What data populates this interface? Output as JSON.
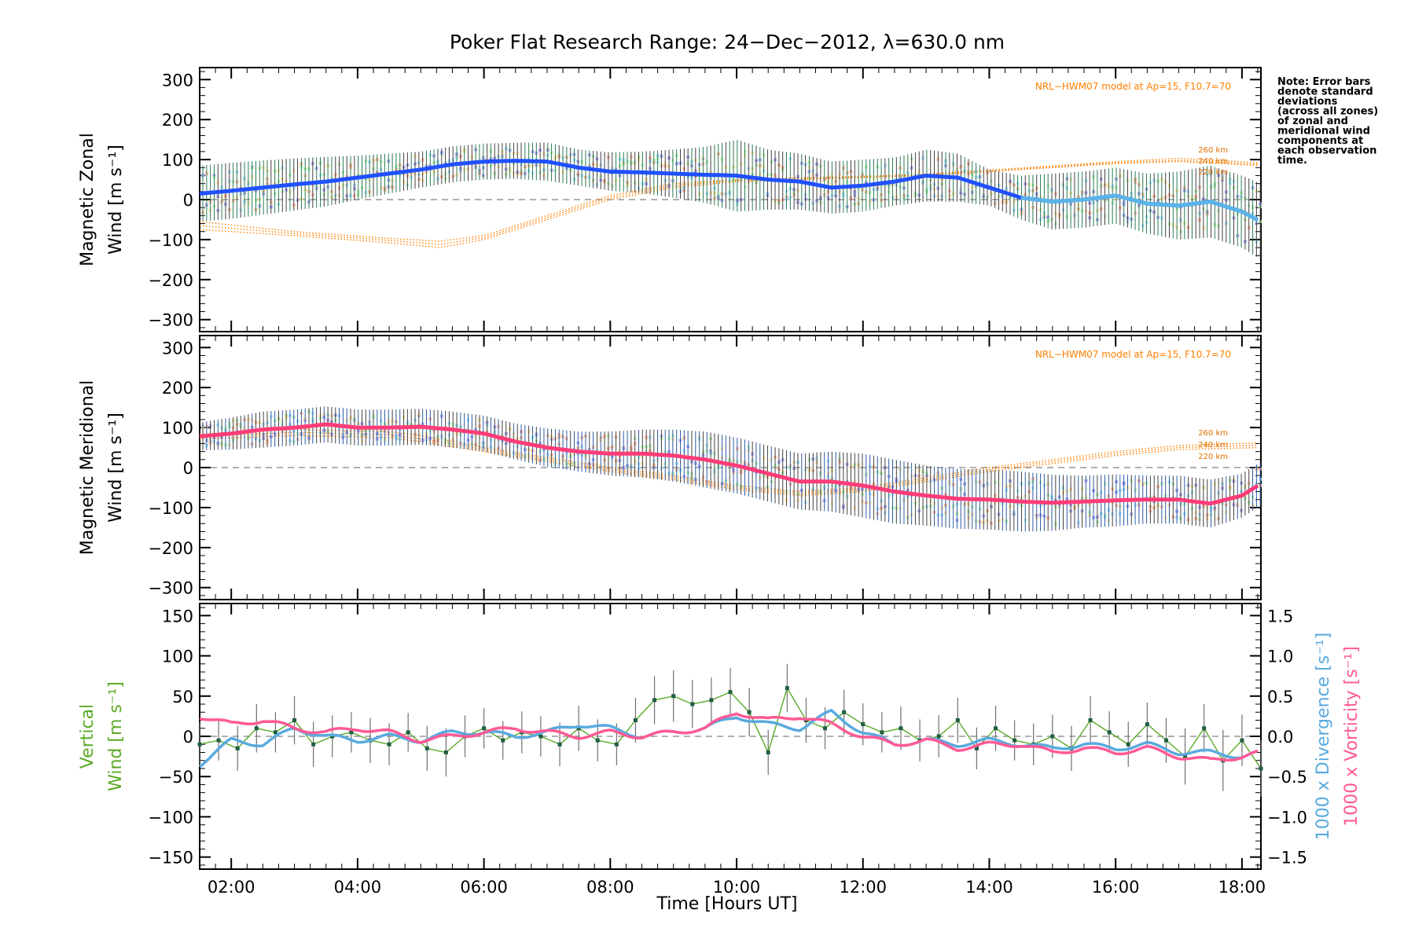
{
  "title": "Poker Flat Research Range: 24−Dec−2012, λ=630.0 nm",
  "note_lines": [
    "Note: Error bars",
    "denote standard",
    "deviations",
    "(across all zones)",
    "of zonal and",
    "meridional wind",
    "components at",
    "each observation",
    "time."
  ],
  "colors": {
    "zonal": "#2050ff",
    "zonal_light": "#5ab4e8",
    "meridional": "#ff3c78",
    "vertical": "#5aaa28",
    "divergence": "#5aaade",
    "vorticity": "#ff5a96",
    "model": "#ff8000",
    "zone_lavender": "#9a9af0",
    "error_bar": "#404040"
  },
  "chart_data": [
    {
      "type": "line",
      "panel": "zonal",
      "ylabel_lines": [
        "Magnetic Zonal",
        "Wind [m s⁻¹]"
      ],
      "ylim": [
        -330,
        330
      ],
      "yticks": [
        300,
        200,
        100,
        0,
        -100,
        -200,
        -300
      ],
      "xlim": [
        1.5,
        18.3
      ],
      "model_label": "NRL−HWM07 model at Ap=15, F10.7=70",
      "model_altitude_labels": [
        "260 km",
        "240 km",
        "220 km"
      ],
      "series": [
        {
          "x": [
            1.5,
            2.0,
            2.5,
            3.0,
            3.5,
            4.0,
            4.5,
            5.0,
            5.5,
            6.0,
            6.5,
            7.0,
            7.5,
            8.0,
            8.5,
            9.0,
            9.5,
            10.0,
            10.5,
            11.0,
            11.5,
            12.0,
            12.5,
            13.0,
            13.5,
            14.0,
            14.5,
            15.0,
            15.5,
            16.0,
            16.5,
            17.0,
            17.5,
            18.0,
            18.3
          ],
          "y": [
            15,
            22,
            30,
            38,
            45,
            55,
            65,
            75,
            88,
            95,
            97,
            95,
            80,
            70,
            68,
            65,
            62,
            60,
            50,
            45,
            30,
            35,
            45,
            60,
            55,
            30,
            5,
            -5,
            0,
            10,
            -10,
            -15,
            -5,
            -30,
            -55
          ],
          "err": [
            70,
            70,
            68,
            65,
            62,
            55,
            50,
            45,
            45,
            45,
            45,
            48,
            45,
            48,
            52,
            60,
            70,
            90,
            75,
            70,
            65,
            65,
            60,
            65,
            60,
            45,
            55,
            70,
            70,
            70,
            75,
            85,
            90,
            90,
            95
          ]
        },
        {
          "x": [
            1.5,
            3,
            4.5,
            5.3,
            6,
            7,
            8,
            9,
            10,
            11,
            12,
            13,
            14,
            15,
            16,
            17,
            18.3
          ],
          "y": [
            -75,
            -90,
            -108,
            -120,
            -100,
            -50,
            0,
            30,
            45,
            50,
            55,
            60,
            70,
            80,
            90,
            95,
            85
          ]
        },
        {
          "x": [
            1.5,
            3,
            4.5,
            5.3,
            6,
            7,
            8,
            9,
            10,
            11,
            12,
            13,
            14,
            15,
            16,
            17,
            18.3
          ],
          "y": [
            -65,
            -85,
            -102,
            -112,
            -95,
            -45,
            5,
            35,
            48,
            52,
            56,
            62,
            72,
            82,
            92,
            98,
            88
          ]
        },
        {
          "x": [
            1.5,
            3,
            4.5,
            5.3,
            6,
            7,
            8,
            9,
            10,
            11,
            12,
            13,
            14,
            15,
            16,
            17,
            18.3
          ],
          "y": [
            -55,
            -80,
            -97,
            -104,
            -90,
            -40,
            10,
            40,
            50,
            55,
            58,
            64,
            74,
            84,
            95,
            103,
            92
          ]
        }
      ]
    },
    {
      "type": "line",
      "panel": "meridional",
      "ylabel_lines": [
        "Magnetic Meridional",
        "Wind [m s⁻¹]"
      ],
      "ylim": [
        -330,
        330
      ],
      "yticks": [
        300,
        200,
        100,
        0,
        -100,
        -200,
        -300
      ],
      "xlim": [
        1.5,
        18.3
      ],
      "model_label": "NRL−HWM07 model at Ap=15, F10.7=70",
      "model_altitude_labels": [
        "260 km",
        "240 km",
        "220 km"
      ],
      "series": [
        {
          "x": [
            1.5,
            2.0,
            2.5,
            3.0,
            3.5,
            4.0,
            4.5,
            5.0,
            5.5,
            6.0,
            6.5,
            7.0,
            7.5,
            8.0,
            8.5,
            9.0,
            9.5,
            10.0,
            10.5,
            11.0,
            11.5,
            12.0,
            12.5,
            13.0,
            13.5,
            14.0,
            14.5,
            15.0,
            15.5,
            16.0,
            16.5,
            17.0,
            17.5,
            18.0,
            18.3
          ],
          "y": [
            78,
            85,
            95,
            100,
            108,
            100,
            100,
            102,
            95,
            85,
            65,
            50,
            40,
            35,
            35,
            30,
            20,
            5,
            -15,
            -35,
            -35,
            -45,
            -60,
            -70,
            -78,
            -80,
            -85,
            -88,
            -85,
            -82,
            -80,
            -80,
            -90,
            -70,
            -40
          ],
          "err": [
            35,
            40,
            45,
            45,
            45,
            45,
            45,
            45,
            45,
            45,
            45,
            48,
            50,
            55,
            60,
            65,
            70,
            70,
            70,
            70,
            75,
            80,
            80,
            75,
            75,
            75,
            75,
            70,
            65,
            65,
            60,
            60,
            60,
            55,
            55
          ]
        },
        {
          "x": [
            1.5,
            3,
            4.5,
            5,
            6,
            7,
            8,
            9,
            10,
            11,
            12,
            13,
            14,
            15,
            16,
            17,
            18.3
          ],
          "y": [
            72,
            80,
            75,
            65,
            40,
            15,
            -10,
            -30,
            -55,
            -70,
            -60,
            -35,
            -10,
            10,
            30,
            45,
            50
          ]
        },
        {
          "x": [
            1.5,
            3,
            4.5,
            5,
            6,
            7,
            8,
            9,
            10,
            11,
            12,
            13,
            14,
            15,
            16,
            17,
            18.3
          ],
          "y": [
            78,
            88,
            82,
            72,
            45,
            20,
            -5,
            -25,
            -50,
            -65,
            -55,
            -30,
            -5,
            15,
            35,
            50,
            56
          ]
        },
        {
          "x": [
            1.5,
            3,
            4.5,
            5,
            6,
            7,
            8,
            9,
            10,
            11,
            12,
            13,
            14,
            15,
            16,
            17,
            18.3
          ],
          "y": [
            84,
            95,
            90,
            80,
            50,
            25,
            0,
            -20,
            -45,
            -60,
            -50,
            -25,
            0,
            20,
            40,
            55,
            62
          ]
        }
      ]
    },
    {
      "type": "line",
      "panel": "vertical",
      "ylabel_lines": [
        "Vertical",
        "Wind [m s⁻¹]"
      ],
      "ylim": [
        -165,
        165
      ],
      "yticks": [
        150,
        100,
        50,
        0,
        -50,
        -100,
        -150
      ],
      "y2label_lines": [
        "1000 x Divergence [s⁻¹]",
        "1000 x Vorticity [s⁻¹]"
      ],
      "y2lim": [
        -1.65,
        1.65
      ],
      "y2ticks": [
        1.5,
        1.0,
        0.5,
        0.0,
        -0.5,
        -1.0,
        -1.5
      ],
      "xlim": [
        1.5,
        18.3
      ],
      "xticks": [
        "02:00",
        "04:00",
        "06:00",
        "08:00",
        "10:00",
        "12:00",
        "14:00",
        "16:00",
        "18:00"
      ],
      "xtick_values": [
        2,
        4,
        6,
        8,
        10,
        12,
        14,
        16,
        18
      ],
      "xlabel": "Time [Hours UT]",
      "series": [
        {
          "x": [
            1.5,
            1.8,
            2.1,
            2.4,
            2.7,
            3.0,
            3.3,
            3.6,
            3.9,
            4.2,
            4.5,
            4.8,
            5.1,
            5.4,
            5.7,
            6.0,
            6.3,
            6.6,
            6.9,
            7.2,
            7.5,
            7.8,
            8.1,
            8.4,
            8.7,
            9.0,
            9.3,
            9.6,
            9.9,
            10.2,
            10.5,
            10.8,
            11.1,
            11.4,
            11.7,
            12.0,
            12.3,
            12.6,
            12.9,
            13.2,
            13.5,
            13.8,
            14.1,
            14.4,
            14.7,
            15.0,
            15.3,
            15.6,
            15.9,
            16.2,
            16.5,
            16.8,
            17.1,
            17.4,
            17.7,
            18.0,
            18.3
          ],
          "y": [
            -10,
            -5,
            -15,
            10,
            5,
            20,
            -10,
            0,
            5,
            -5,
            -10,
            5,
            -15,
            -20,
            0,
            10,
            -5,
            5,
            0,
            -10,
            10,
            -5,
            -10,
            20,
            45,
            50,
            40,
            45,
            55,
            30,
            -20,
            60,
            20,
            10,
            30,
            15,
            5,
            10,
            -5,
            0,
            20,
            -15,
            10,
            -5,
            -10,
            0,
            -15,
            20,
            5,
            -10,
            15,
            -5,
            -25,
            10,
            -30,
            -5,
            -40
          ],
          "err": [
            28,
            25,
            28,
            30,
            25,
            30,
            28,
            26,
            25,
            28,
            26,
            24,
            28,
            30,
            26,
            25,
            24,
            26,
            25,
            27,
            28,
            26,
            26,
            28,
            30,
            32,
            30,
            28,
            30,
            30,
            28,
            30,
            28,
            26,
            28,
            26,
            25,
            27,
            26,
            26,
            28,
            26,
            28,
            25,
            26,
            27,
            28,
            30,
            26,
            28,
            27,
            28,
            35,
            30,
            38,
            32,
            35
          ]
        },
        {
          "x": [
            1.5,
            2,
            2.5,
            3,
            3.5,
            4,
            4.5,
            5,
            5.5,
            6,
            6.5,
            7,
            7.5,
            8,
            8.5,
            9,
            9.5,
            10,
            10.5,
            11,
            11.5,
            12,
            12.5,
            13,
            13.5,
            14,
            14.5,
            15,
            15.5,
            16,
            16.5,
            17,
            17.5,
            18,
            18.3
          ],
          "y": [
            -0.35,
            -0.05,
            -0.1,
            0.1,
            0.0,
            -0.05,
            0.0,
            -0.05,
            0.05,
            0.05,
            0.0,
            0.05,
            0.15,
            0.1,
            0.0,
            0.05,
            0.1,
            0.25,
            0.15,
            0.1,
            0.3,
            0.05,
            -0.1,
            -0.05,
            -0.1,
            -0.05,
            -0.1,
            -0.15,
            -0.1,
            -0.15,
            -0.1,
            -0.2,
            -0.2,
            -0.25,
            -0.2
          ]
        },
        {
          "x": [
            1.5,
            2,
            2.5,
            3,
            3.5,
            4,
            4.5,
            5,
            5.5,
            6,
            6.5,
            7,
            7.5,
            8,
            8.5,
            9,
            9.5,
            10,
            10.5,
            11,
            11.5,
            12,
            12.5,
            13,
            13.5,
            14,
            14.5,
            15,
            15.5,
            16,
            16.5,
            17,
            17.5,
            18,
            18.3
          ],
          "y": [
            0.25,
            0.15,
            0.2,
            0.1,
            0.05,
            0.1,
            0.05,
            -0.05,
            0.0,
            0.05,
            0.1,
            0.05,
            0.0,
            0.05,
            0.0,
            0.05,
            0.1,
            0.3,
            0.2,
            0.25,
            0.15,
            0.0,
            -0.1,
            -0.05,
            -0.15,
            -0.1,
            -0.1,
            -0.2,
            -0.15,
            -0.2,
            -0.15,
            -0.25,
            -0.3,
            -0.25,
            -0.2
          ]
        }
      ]
    }
  ]
}
